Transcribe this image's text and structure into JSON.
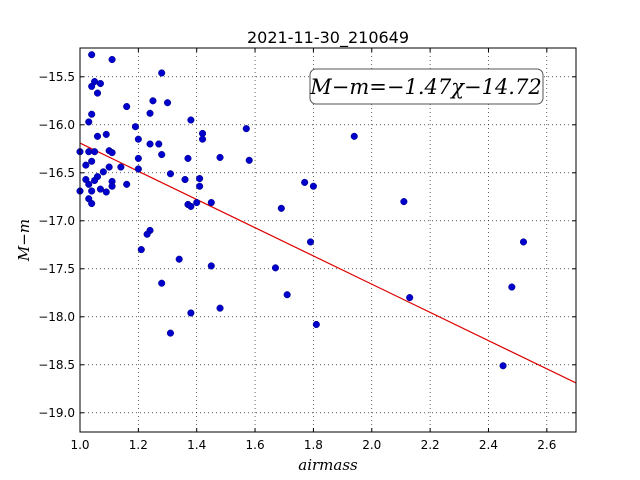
{
  "chart_data": {
    "type": "scatter",
    "title": "2021-11-30_210649",
    "xlabel": "airmass",
    "ylabel": "M−m",
    "xlim": [
      1.0,
      2.7
    ],
    "ylim": [
      -19.2,
      -15.2
    ],
    "y_inverted": true,
    "grid": true,
    "x_ticks": [
      1.0,
      1.2,
      1.4,
      1.6,
      1.8,
      2.0,
      2.2,
      2.4,
      2.6
    ],
    "x_tick_labels": [
      "1.0",
      "1.2",
      "1.4",
      "1.6",
      "1.8",
      "2.0",
      "2.2",
      "2.4",
      "2.6"
    ],
    "y_ticks": [
      -15.5,
      -16.0,
      -16.5,
      -17.0,
      -17.5,
      -18.0,
      -18.5,
      -19.0
    ],
    "y_tick_labels": [
      "−15.5",
      "−16.0",
      "−16.5",
      "−17.0",
      "−17.5",
      "−18.0",
      "−18.5",
      "−19.0"
    ],
    "annotation": "M−m=−1.47χ−14.72",
    "annotation_position": "top-right",
    "point_color": "#0000cc",
    "fit_color": "#dd0000",
    "fit": {
      "slope": -1.47,
      "intercept": -14.72
    },
    "points": [
      [
        1.04,
        -15.27
      ],
      [
        1.11,
        -15.32
      ],
      [
        1.05,
        -15.55
      ],
      [
        1.07,
        -15.57
      ],
      [
        1.06,
        -15.67
      ],
      [
        1.04,
        -15.6
      ],
      [
        1.28,
        -15.46
      ],
      [
        1.25,
        -15.75
      ],
      [
        1.3,
        -15.77
      ],
      [
        1.16,
        -15.81
      ],
      [
        1.04,
        -15.89
      ],
      [
        1.03,
        -15.97
      ],
      [
        1.24,
        -15.88
      ],
      [
        1.38,
        -15.95
      ],
      [
        1.19,
        -16.02
      ],
      [
        1.06,
        -16.12
      ],
      [
        1.09,
        -16.1
      ],
      [
        1.42,
        -16.09
      ],
      [
        1.57,
        -16.04
      ],
      [
        1.94,
        -16.12
      ],
      [
        1.42,
        -16.15
      ],
      [
        1.2,
        -16.15
      ],
      [
        1.24,
        -16.2
      ],
      [
        1.27,
        -16.2
      ],
      [
        1.0,
        -16.28
      ],
      [
        1.03,
        -16.28
      ],
      [
        1.05,
        -16.28
      ],
      [
        1.1,
        -16.27
      ],
      [
        1.11,
        -16.29
      ],
      [
        1.28,
        -16.31
      ],
      [
        1.02,
        -16.42
      ],
      [
        1.04,
        -16.38
      ],
      [
        1.2,
        -16.35
      ],
      [
        1.37,
        -16.35
      ],
      [
        1.48,
        -16.34
      ],
      [
        1.58,
        -16.37
      ],
      [
        1.08,
        -16.49
      ],
      [
        1.1,
        -16.44
      ],
      [
        1.14,
        -16.44
      ],
      [
        1.2,
        -16.46
      ],
      [
        1.06,
        -16.54
      ],
      [
        1.31,
        -16.51
      ],
      [
        1.02,
        -16.57
      ],
      [
        1.05,
        -16.58
      ],
      [
        1.11,
        -16.59
      ],
      [
        1.36,
        -16.57
      ],
      [
        1.41,
        -16.56
      ],
      [
        1.03,
        -16.62
      ],
      [
        1.11,
        -16.64
      ],
      [
        1.16,
        -16.62
      ],
      [
        1.41,
        -16.64
      ],
      [
        1.77,
        -16.6
      ],
      [
        1.8,
        -16.64
      ],
      [
        1.0,
        -16.69
      ],
      [
        1.04,
        -16.69
      ],
      [
        1.07,
        -16.67
      ],
      [
        1.09,
        -16.7
      ],
      [
        1.03,
        -16.77
      ],
      [
        1.04,
        -16.82
      ],
      [
        1.37,
        -16.83
      ],
      [
        1.4,
        -16.81
      ],
      [
        1.45,
        -16.81
      ],
      [
        1.38,
        -16.85
      ],
      [
        1.69,
        -16.87
      ],
      [
        2.11,
        -16.8
      ],
      [
        1.24,
        -17.1
      ],
      [
        1.23,
        -17.14
      ],
      [
        1.79,
        -17.22
      ],
      [
        2.52,
        -17.22
      ],
      [
        1.21,
        -17.3
      ],
      [
        1.34,
        -17.4
      ],
      [
        1.45,
        -17.47
      ],
      [
        1.67,
        -17.49
      ],
      [
        1.28,
        -17.65
      ],
      [
        2.48,
        -17.69
      ],
      [
        1.71,
        -17.77
      ],
      [
        2.13,
        -17.8
      ],
      [
        1.48,
        -17.91
      ],
      [
        1.38,
        -17.96
      ],
      [
        1.81,
        -18.08
      ],
      [
        1.31,
        -18.17
      ],
      [
        2.45,
        -18.51
      ]
    ]
  }
}
